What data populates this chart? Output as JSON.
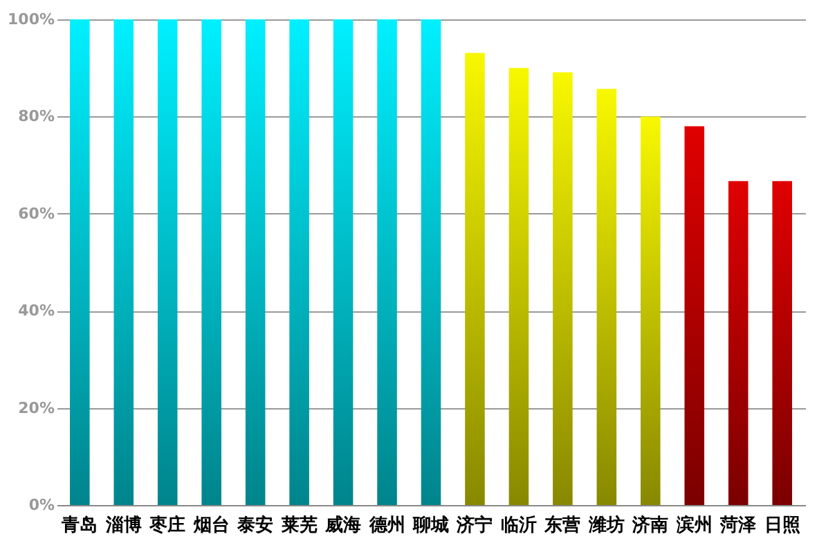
{
  "chart_data": {
    "type": "bar",
    "categories": [
      "青岛",
      "淄博",
      "枣庄",
      "烟台",
      "泰安",
      "莱芜",
      "威海",
      "德州",
      "聊城",
      "济宁",
      "临沂",
      "东营",
      "潍坊",
      "济南",
      "滨州",
      "菏泽",
      "日照"
    ],
    "values": [
      100,
      100,
      100,
      100,
      100,
      100,
      100,
      100,
      100,
      93.1,
      90,
      89.1,
      85.7,
      80,
      78,
      66.7,
      66.7
    ],
    "colors": [
      "#00f0ff",
      "#00f0ff",
      "#00f0ff",
      "#00f0ff",
      "#00f0ff",
      "#00f0ff",
      "#00f0ff",
      "#00f0ff",
      "#00f0ff",
      "#f8f800",
      "#f8f800",
      "#f8f800",
      "#f8f800",
      "#f8f800",
      "#e00000",
      "#e00000",
      "#e00000"
    ],
    "ylim": [
      0,
      100
    ],
    "yticks": [
      {
        "value": 0,
        "label": "0%"
      },
      {
        "value": 20,
        "label": "20%"
      },
      {
        "value": 40,
        "label": "40%"
      },
      {
        "value": 60,
        "label": "60%"
      },
      {
        "value": 80,
        "label": "80%"
      },
      {
        "value": 100,
        "label": "100%"
      }
    ],
    "grid": "y"
  }
}
